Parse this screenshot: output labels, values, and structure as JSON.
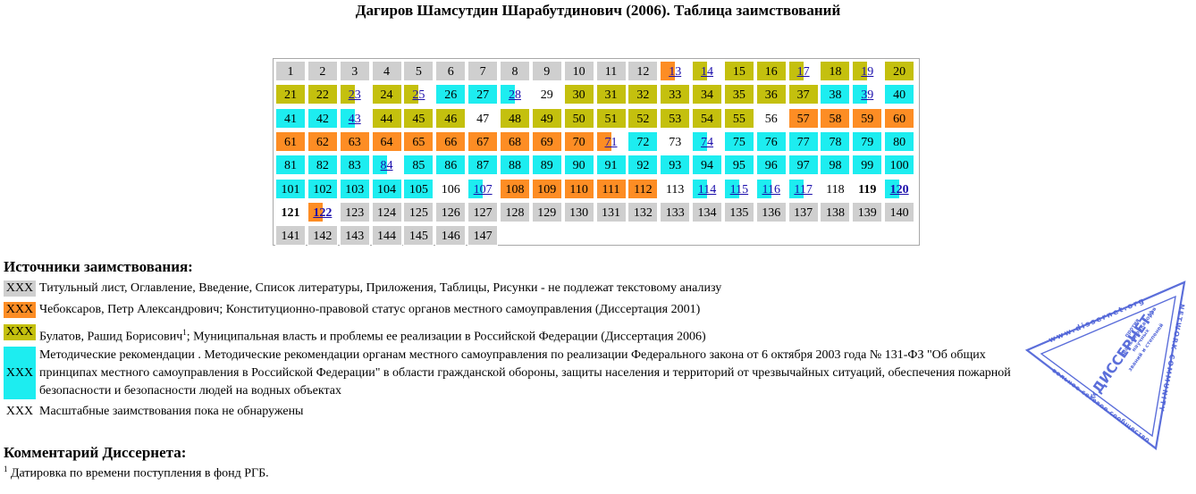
{
  "title": "Дагиров Шамсутдин Шарабутдинович (2006). Таблица заимствований",
  "colors": {
    "title_pages": "#cfcfcf",
    "cheboksarov": "#fd8d24",
    "bulatov": "#c4c00e",
    "method_recs": "#1dedf0",
    "none": "#ffffff"
  },
  "pages": [
    {
      "n": "1",
      "c": "t"
    },
    {
      "n": "2",
      "c": "t"
    },
    {
      "n": "3",
      "c": "t"
    },
    {
      "n": "4",
      "c": "t"
    },
    {
      "n": "5",
      "c": "t"
    },
    {
      "n": "6",
      "c": "t"
    },
    {
      "n": "7",
      "c": "t"
    },
    {
      "n": "8",
      "c": "t"
    },
    {
      "n": "9",
      "c": "t"
    },
    {
      "n": "10",
      "c": "t"
    },
    {
      "n": "11",
      "c": "t"
    },
    {
      "n": "12",
      "c": "t"
    },
    {
      "n": "13",
      "c": "o",
      "h": true
    },
    {
      "n": "14",
      "c": "y",
      "h": true
    },
    {
      "n": "15",
      "c": "y"
    },
    {
      "n": "16",
      "c": "y"
    },
    {
      "n": "17",
      "c": "y",
      "h": true
    },
    {
      "n": "18",
      "c": "y"
    },
    {
      "n": "19",
      "c": "y",
      "h": true
    },
    {
      "n": "20",
      "c": "y"
    },
    {
      "n": "21",
      "c": "y"
    },
    {
      "n": "22",
      "c": "y"
    },
    {
      "n": "23",
      "c": "y",
      "h": true
    },
    {
      "n": "24",
      "c": "y"
    },
    {
      "n": "25",
      "c": "y",
      "h": true
    },
    {
      "n": "26",
      "c": "c"
    },
    {
      "n": "27",
      "c": "c"
    },
    {
      "n": "28",
      "c": "c",
      "h": true
    },
    {
      "n": "29",
      "c": "w"
    },
    {
      "n": "30",
      "c": "y"
    },
    {
      "n": "31",
      "c": "y"
    },
    {
      "n": "32",
      "c": "y"
    },
    {
      "n": "33",
      "c": "y"
    },
    {
      "n": "34",
      "c": "y"
    },
    {
      "n": "35",
      "c": "y"
    },
    {
      "n": "36",
      "c": "y"
    },
    {
      "n": "37",
      "c": "y"
    },
    {
      "n": "38",
      "c": "c"
    },
    {
      "n": "39",
      "c": "c",
      "h": true
    },
    {
      "n": "40",
      "c": "c"
    },
    {
      "n": "41",
      "c": "c"
    },
    {
      "n": "42",
      "c": "c"
    },
    {
      "n": "43",
      "c": "c",
      "h": true
    },
    {
      "n": "44",
      "c": "y"
    },
    {
      "n": "45",
      "c": "y"
    },
    {
      "n": "46",
      "c": "y"
    },
    {
      "n": "47",
      "c": "w"
    },
    {
      "n": "48",
      "c": "y"
    },
    {
      "n": "49",
      "c": "y"
    },
    {
      "n": "50",
      "c": "y"
    },
    {
      "n": "51",
      "c": "y"
    },
    {
      "n": "52",
      "c": "y"
    },
    {
      "n": "53",
      "c": "y"
    },
    {
      "n": "54",
      "c": "y"
    },
    {
      "n": "55",
      "c": "y"
    },
    {
      "n": "56",
      "c": "w"
    },
    {
      "n": "57",
      "c": "o"
    },
    {
      "n": "58",
      "c": "o"
    },
    {
      "n": "59",
      "c": "o"
    },
    {
      "n": "60",
      "c": "o"
    },
    {
      "n": "61",
      "c": "o"
    },
    {
      "n": "62",
      "c": "o"
    },
    {
      "n": "63",
      "c": "o"
    },
    {
      "n": "64",
      "c": "o"
    },
    {
      "n": "65",
      "c": "o"
    },
    {
      "n": "66",
      "c": "o"
    },
    {
      "n": "67",
      "c": "o"
    },
    {
      "n": "68",
      "c": "o"
    },
    {
      "n": "69",
      "c": "o"
    },
    {
      "n": "70",
      "c": "o"
    },
    {
      "n": "71",
      "c": "o",
      "h": true
    },
    {
      "n": "72",
      "c": "c"
    },
    {
      "n": "73",
      "c": "w"
    },
    {
      "n": "74",
      "c": "c",
      "h": true
    },
    {
      "n": "75",
      "c": "c"
    },
    {
      "n": "76",
      "c": "c"
    },
    {
      "n": "77",
      "c": "c"
    },
    {
      "n": "78",
      "c": "c"
    },
    {
      "n": "79",
      "c": "c"
    },
    {
      "n": "80",
      "c": "c"
    },
    {
      "n": "81",
      "c": "c"
    },
    {
      "n": "82",
      "c": "c"
    },
    {
      "n": "83",
      "c": "c"
    },
    {
      "n": "84",
      "c": "c",
      "h": true
    },
    {
      "n": "85",
      "c": "c"
    },
    {
      "n": "86",
      "c": "c"
    },
    {
      "n": "87",
      "c": "c"
    },
    {
      "n": "88",
      "c": "c"
    },
    {
      "n": "89",
      "c": "c"
    },
    {
      "n": "90",
      "c": "c"
    },
    {
      "n": "91",
      "c": "c"
    },
    {
      "n": "92",
      "c": "c"
    },
    {
      "n": "93",
      "c": "c"
    },
    {
      "n": "94",
      "c": "c"
    },
    {
      "n": "95",
      "c": "c"
    },
    {
      "n": "96",
      "c": "c"
    },
    {
      "n": "97",
      "c": "c"
    },
    {
      "n": "98",
      "c": "c"
    },
    {
      "n": "99",
      "c": "c"
    },
    {
      "n": "100",
      "c": "c"
    },
    {
      "n": "101",
      "c": "c"
    },
    {
      "n": "102",
      "c": "c"
    },
    {
      "n": "103",
      "c": "c"
    },
    {
      "n": "104",
      "c": "c"
    },
    {
      "n": "105",
      "c": "c"
    },
    {
      "n": "106",
      "c": "w"
    },
    {
      "n": "107",
      "c": "c",
      "h": true
    },
    {
      "n": "108",
      "c": "o"
    },
    {
      "n": "109",
      "c": "o"
    },
    {
      "n": "110",
      "c": "o"
    },
    {
      "n": "111",
      "c": "o"
    },
    {
      "n": "112",
      "c": "o"
    },
    {
      "n": "113",
      "c": "w"
    },
    {
      "n": "114",
      "c": "c",
      "h": true
    },
    {
      "n": "115",
      "c": "c",
      "h": true
    },
    {
      "n": "116",
      "c": "c",
      "h": true
    },
    {
      "n": "117",
      "c": "c",
      "h": true
    },
    {
      "n": "118",
      "c": "w"
    },
    {
      "n": "119",
      "c": "w",
      "b": true
    },
    {
      "n": "120",
      "c": "c",
      "h": true,
      "b": true
    },
    {
      "n": "121",
      "c": "w",
      "b": true
    },
    {
      "n": "122",
      "c": "o",
      "h": true,
      "b": true
    },
    {
      "n": "123",
      "c": "t"
    },
    {
      "n": "124",
      "c": "t"
    },
    {
      "n": "125",
      "c": "t"
    },
    {
      "n": "126",
      "c": "t"
    },
    {
      "n": "127",
      "c": "t"
    },
    {
      "n": "128",
      "c": "t"
    },
    {
      "n": "129",
      "c": "t"
    },
    {
      "n": "130",
      "c": "t"
    },
    {
      "n": "131",
      "c": "t"
    },
    {
      "n": "132",
      "c": "t"
    },
    {
      "n": "133",
      "c": "t"
    },
    {
      "n": "134",
      "c": "t"
    },
    {
      "n": "135",
      "c": "t"
    },
    {
      "n": "136",
      "c": "t"
    },
    {
      "n": "137",
      "c": "t"
    },
    {
      "n": "138",
      "c": "t"
    },
    {
      "n": "139",
      "c": "t"
    },
    {
      "n": "140",
      "c": "t"
    },
    {
      "n": "141",
      "c": "t"
    },
    {
      "n": "142",
      "c": "t"
    },
    {
      "n": "143",
      "c": "t"
    },
    {
      "n": "144",
      "c": "t"
    },
    {
      "n": "145",
      "c": "t"
    },
    {
      "n": "146",
      "c": "t"
    },
    {
      "n": "147",
      "c": "t"
    }
  ],
  "sources": {
    "title": "Источники заимствования:",
    "swatch_label": "XXX",
    "items": [
      {
        "color": "t",
        "text": "Титульный лист, Оглавление, Введение, Список литературы, Приложения, Таблицы, Рисунки - не подлежат текстовому анализу"
      },
      {
        "color": "o",
        "text": "Чебоксаров, Петр Александрович; Конституционно-правовой статус органов местного самоуправления (Диссертация 2001)"
      },
      {
        "color": "y",
        "text_before": "Булатов, Рашид Борисович",
        "sup": "1",
        "text_after": "; Муниципальная власть и проблемы ее реализации в Российской Федерации (Диссертация 2006)"
      },
      {
        "color": "c",
        "text": "Методические рекомендации . Методические рекомендации органам местного самоуправления по реализации Федерального закона от 6 октября 2003 года № 131-ФЗ \"Об общих принципах местного самоуправления в Российской Федерации\" в области гражданской обороны, защиты населения и территорий от чрезвычайных ситуаций, обеспечения пожарной безопасности и безопасности людей на водных объектах"
      },
      {
        "color": "w",
        "text": "Масштабные заимствования пока не обнаружены"
      }
    ]
  },
  "comment": {
    "title": "Комментарий Диссернета:",
    "sup": "1",
    "text": " Датировка по времени поступления в фонд РГБ."
  },
  "stamp": {
    "name": "«ДИССЕРНЕТ»",
    "top": "www.dissernet.org",
    "right": "NETWORK COMMUNITY",
    "bottom": "вольное сетевое сообщество",
    "inner1": "против",
    "inner2": "фальсификаторов",
    "inner3": "научных",
    "inner4": "званий и степеней"
  }
}
